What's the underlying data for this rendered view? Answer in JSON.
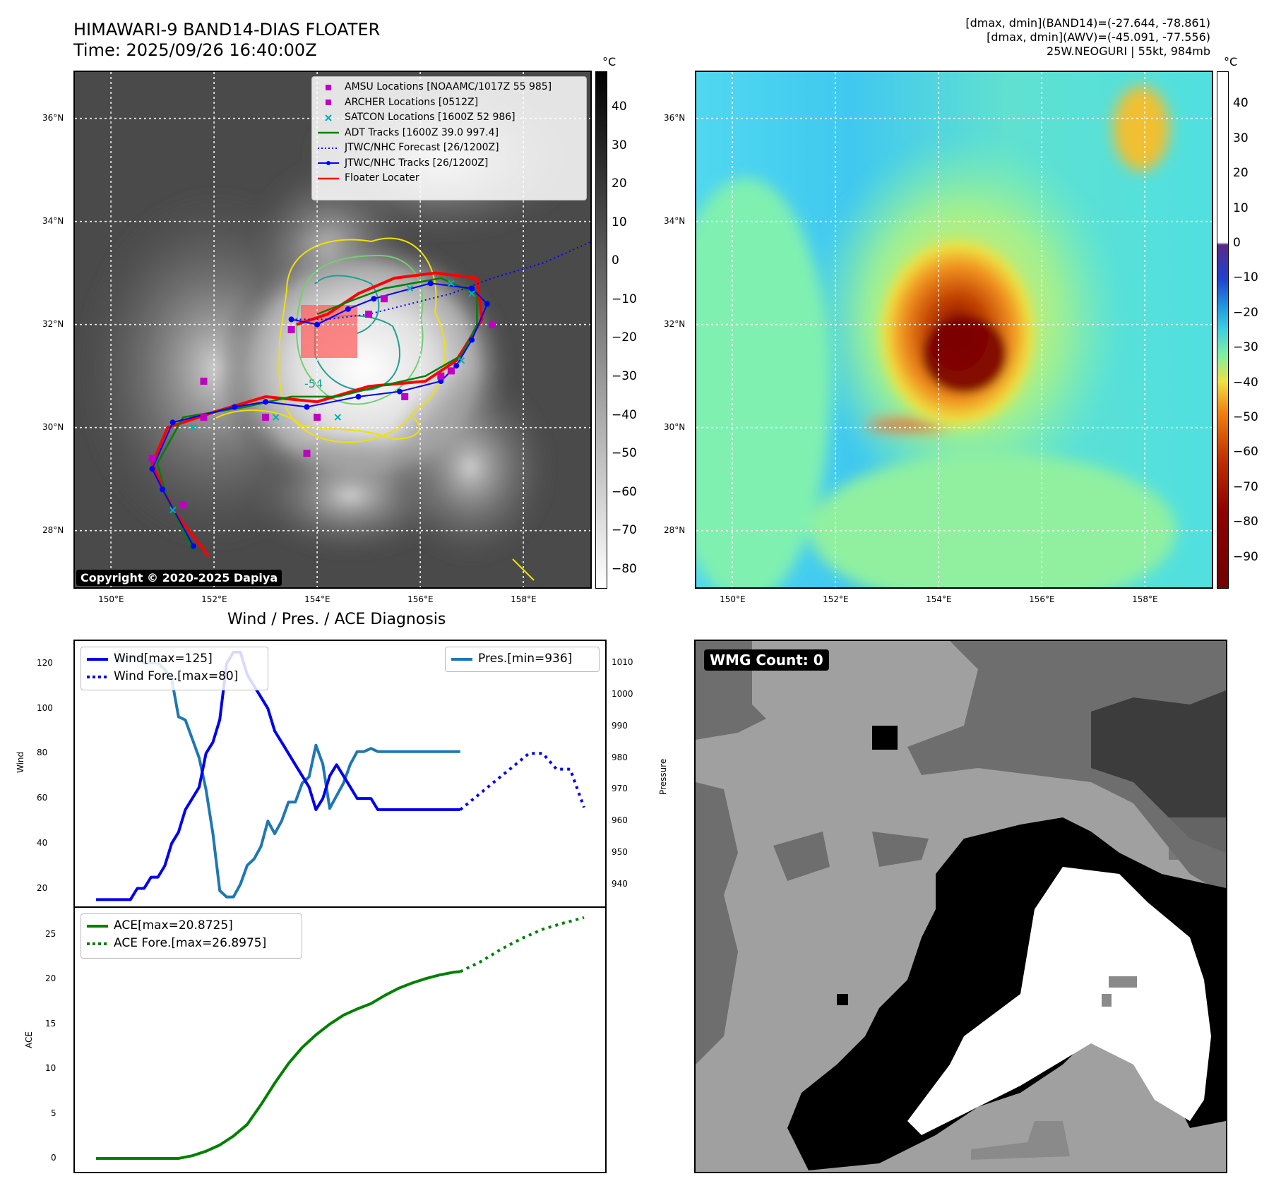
{
  "header": {
    "title_line1": "HIMAWARI-9 BAND14-DIAS FLOATER",
    "title_line2": "Time: 2025/09/26 16:40:00Z",
    "info_line1": "[dmax, dmin](BAND14)=(-27.644, -78.861)",
    "info_line2": "[dmax, dmin](AWV)=(-45.091, -77.556)",
    "info_line3": "25W.NEOGURI | 55kt, 984mb"
  },
  "map": {
    "lon_ticks": [
      "150°E",
      "152°E",
      "154°E",
      "156°E",
      "158°E"
    ],
    "lon_values": [
      150,
      152,
      154,
      156,
      158
    ],
    "lat_ticks": [
      "36°N",
      "34°N",
      "32°N",
      "30°N",
      "28°N"
    ],
    "lat_values": [
      36,
      34,
      32,
      30,
      28
    ],
    "lon_range": [
      149.3,
      159.3
    ],
    "lat_range": [
      26.9,
      36.9
    ],
    "contour_label": "-54",
    "copyright": "Copyright © 2020-2025 Dapiya"
  },
  "colorbar_ir": {
    "unit": "°C",
    "ticks": [
      "40",
      "30",
      "20",
      "10",
      "0",
      "−10",
      "−20",
      "−30",
      "−40",
      "−50",
      "−60",
      "−70",
      "−80"
    ],
    "tick_values": [
      40,
      30,
      20,
      10,
      0,
      -10,
      -20,
      -30,
      -40,
      -50,
      -60,
      -70,
      -80
    ],
    "range": [
      -85,
      49
    ]
  },
  "colorbar_wv": {
    "unit": "°C",
    "ticks": [
      "40",
      "30",
      "20",
      "10",
      "0",
      "−10",
      "−20",
      "−30",
      "−40",
      "−50",
      "−60",
      "−70",
      "−80",
      "−90"
    ],
    "tick_values": [
      40,
      30,
      20,
      10,
      0,
      -10,
      -20,
      -30,
      -40,
      -50,
      -60,
      -70,
      -80,
      -90
    ],
    "range": [
      -99,
      49
    ]
  },
  "map_legend": [
    {
      "label": "AMSU Locations [NOAAMC/1017Z 55 985]",
      "marker": "square",
      "color": "#c000c0"
    },
    {
      "label": "ARCHER Locations [0512Z]",
      "marker": "square",
      "color": "#c000c0"
    },
    {
      "label": "SATCON Locations [1600Z 52 986]",
      "marker": "x",
      "color": "#00b0b0"
    },
    {
      "label": "ADT Tracks [1600Z 39.0 997.4]",
      "marker": "line",
      "color": "#008000"
    },
    {
      "label": "JTWC/NHC Forecast [26/1200Z]",
      "marker": "dotted",
      "color": "#0000ff"
    },
    {
      "label": "JTWC/NHC Tracks [26/1200Z]",
      "marker": "line-dot",
      "color": "#0000ff"
    },
    {
      "label": "Floater Locater",
      "marker": "line",
      "color": "#ff0000"
    }
  ],
  "tracks": {
    "jtwc_track": [
      [
        151.6,
        27.7
      ],
      [
        151.0,
        28.8
      ],
      [
        150.8,
        29.2
      ],
      [
        151.2,
        30.1
      ],
      [
        152.4,
        30.4
      ],
      [
        153.0,
        30.5
      ],
      [
        153.8,
        30.4
      ],
      [
        154.8,
        30.6
      ],
      [
        155.6,
        30.7
      ],
      [
        156.4,
        30.9
      ],
      [
        156.7,
        31.2
      ],
      [
        157.0,
        31.7
      ],
      [
        157.3,
        32.4
      ],
      [
        157.0,
        32.7
      ],
      [
        156.2,
        32.8
      ],
      [
        155.1,
        32.5
      ],
      [
        154.6,
        32.3
      ],
      [
        154.0,
        32.0
      ],
      [
        153.5,
        32.1
      ]
    ],
    "jtwc_forecast": [
      [
        153.5,
        32.1
      ],
      [
        154.2,
        32.1
      ],
      [
        155.0,
        32.2
      ],
      [
        155.8,
        32.4
      ],
      [
        156.6,
        32.6
      ],
      [
        157.4,
        32.9
      ],
      [
        158.4,
        33.2
      ],
      [
        159.3,
        33.6
      ]
    ],
    "adt_track": [
      [
        151.6,
        27.6
      ],
      [
        151.1,
        28.6
      ],
      [
        150.9,
        29.3
      ],
      [
        151.4,
        30.2
      ],
      [
        152.6,
        30.4
      ],
      [
        153.5,
        30.6
      ],
      [
        154.4,
        30.6
      ],
      [
        155.2,
        30.8
      ],
      [
        156.1,
        31.0
      ],
      [
        156.8,
        31.4
      ],
      [
        157.1,
        32.0
      ],
      [
        157.1,
        32.6
      ],
      [
        156.4,
        32.9
      ],
      [
        155.3,
        32.7
      ],
      [
        154.5,
        32.4
      ],
      [
        154.0,
        32.2
      ]
    ],
    "floater": [
      [
        151.9,
        27.5
      ],
      [
        151.2,
        28.4
      ],
      [
        150.8,
        29.3
      ],
      [
        151.1,
        30.0
      ],
      [
        152.0,
        30.3
      ],
      [
        153.0,
        30.6
      ],
      [
        154.0,
        30.5
      ],
      [
        155.0,
        30.8
      ],
      [
        156.1,
        30.9
      ],
      [
        156.7,
        31.3
      ],
      [
        157.2,
        32.1
      ],
      [
        157.1,
        32.9
      ],
      [
        156.3,
        33.0
      ],
      [
        155.5,
        32.9
      ],
      [
        154.8,
        32.6
      ],
      [
        154.2,
        32.2
      ],
      [
        153.6,
        32.0
      ]
    ],
    "amsu_points": [
      [
        151.8,
        30.9
      ],
      [
        151.8,
        30.2
      ],
      [
        153.0,
        30.2
      ],
      [
        153.5,
        31.9
      ],
      [
        153.8,
        29.5
      ],
      [
        154.0,
        30.2
      ],
      [
        155.0,
        32.2
      ],
      [
        155.3,
        32.5
      ],
      [
        155.7,
        30.6
      ],
      [
        156.4,
        31.0
      ],
      [
        156.6,
        31.1
      ],
      [
        157.4,
        32.0
      ],
      [
        150.8,
        29.4
      ],
      [
        151.4,
        28.5
      ]
    ],
    "satcon_points": [
      [
        151.2,
        28.4
      ],
      [
        151.6,
        30.0
      ],
      [
        153.2,
        30.2
      ],
      [
        154.4,
        30.2
      ],
      [
        156.8,
        31.3
      ],
      [
        157.0,
        32.6
      ],
      [
        155.8,
        32.7
      ],
      [
        156.6,
        32.8
      ]
    ]
  },
  "wind_plot": {
    "title": "Wind / Pres. / ACE Diagnosis",
    "left_label": "Wind",
    "right_label": "Pressure",
    "left_ticks": [
      20,
      40,
      60,
      80,
      100,
      120
    ],
    "left_range": [
      12,
      130
    ],
    "right_ticks": [
      940,
      950,
      960,
      970,
      980,
      990,
      1000,
      1010
    ],
    "right_range": [
      933,
      1017
    ],
    "x_range": [
      0,
      71
    ],
    "legend_wind": "Wind[max=125]",
    "legend_wind_fore": "Wind Fore.[max=80]",
    "legend_pres": "Pres.[min=936]",
    "wind_color": "#0000ee",
    "pres_color": "#1f77b4"
  },
  "ace_plot": {
    "left_label": "ACE",
    "left_ticks": [
      0,
      5,
      10,
      15,
      20,
      25
    ],
    "left_range": [
      -1.5,
      28
    ],
    "legend_ace": "ACE[max=20.8725]",
    "legend_ace_fore": "ACE Fore.[max=26.8975]",
    "ace_color": "#008000"
  },
  "chart_data": [
    {
      "type": "line",
      "title": "Wind / Pres. / ACE Diagnosis",
      "ylabel": "Wind",
      "ylim": [
        12,
        130
      ],
      "series": [
        {
          "name": "Wind[max=125]",
          "x": [
            0,
            1,
            2,
            3,
            4,
            5,
            6,
            7,
            8,
            9,
            10,
            11,
            12,
            13,
            14,
            15,
            16,
            17,
            18,
            19,
            20,
            21,
            22,
            23,
            24,
            25,
            26,
            27,
            28,
            29,
            30,
            31,
            32,
            33,
            34,
            35,
            36,
            37,
            38,
            39,
            40,
            41,
            42,
            43,
            44,
            45,
            46,
            47,
            48,
            49,
            50,
            51,
            52,
            53
          ],
          "values": [
            15,
            15,
            15,
            15,
            15,
            15,
            20,
            20,
            25,
            25,
            30,
            40,
            45,
            55,
            60,
            65,
            80,
            85,
            95,
            120,
            125,
            125,
            115,
            110,
            105,
            100,
            90,
            85,
            80,
            75,
            70,
            65,
            55,
            60,
            70,
            75,
            70,
            65,
            60,
            60,
            60,
            55,
            55,
            55,
            55,
            55,
            55,
            55,
            55,
            55,
            55,
            55,
            55,
            55
          ]
        },
        {
          "name": "Wind Fore.[max=80]",
          "x": [
            53,
            55,
            57,
            59,
            61,
            63,
            65,
            67,
            69,
            71
          ],
          "values": [
            55,
            60,
            65,
            70,
            75,
            80,
            80,
            73,
            73,
            56
          ]
        }
      ]
    },
    {
      "type": "line",
      "ylabel": "Pressure",
      "ylim": [
        933,
        1017
      ],
      "series": [
        {
          "name": "Pres.[min=936]",
          "x": [
            3,
            4,
            5,
            6,
            7,
            8,
            9,
            10,
            11,
            12,
            13,
            14,
            15,
            16,
            17,
            18,
            19,
            20,
            21,
            22,
            23,
            24,
            25,
            26,
            27,
            28,
            29,
            30,
            31,
            32,
            33,
            34,
            35,
            36,
            37,
            38,
            39,
            40,
            41,
            42,
            43,
            44,
            45,
            46,
            47,
            48,
            49,
            50,
            51,
            52,
            53
          ],
          "values": [
            1010,
            1012,
            1012,
            1012,
            1010,
            1010,
            1010,
            1008,
            1005,
            993,
            992,
            986,
            980,
            970,
            956,
            938,
            936,
            936,
            940,
            946,
            948,
            952,
            960,
            956,
            960,
            966,
            966,
            972,
            974,
            984,
            978,
            964,
            968,
            972,
            978,
            982,
            982,
            983,
            982,
            982,
            982,
            982,
            982,
            982,
            982,
            982,
            982,
            982,
            982,
            982,
            982
          ]
        }
      ]
    },
    {
      "type": "line",
      "ylabel": "ACE",
      "ylim": [
        -1.5,
        28
      ],
      "series": [
        {
          "name": "ACE[max=20.8725]",
          "x": [
            0,
            12,
            14,
            16,
            18,
            20,
            22,
            24,
            26,
            28,
            30,
            32,
            34,
            36,
            38,
            40,
            42,
            44,
            46,
            48,
            50,
            52,
            53
          ],
          "values": [
            0,
            0,
            0.3,
            0.8,
            1.5,
            2.5,
            3.8,
            6,
            8.4,
            10.6,
            12.4,
            13.8,
            15,
            16,
            16.7,
            17.3,
            18.2,
            19,
            19.6,
            20.1,
            20.5,
            20.8,
            20.87
          ]
        },
        {
          "name": "ACE Fore.[max=26.8975]",
          "x": [
            53,
            56,
            59,
            62,
            65,
            68,
            71
          ],
          "values": [
            20.87,
            22,
            23.4,
            24.6,
            25.6,
            26.3,
            26.9
          ]
        }
      ]
    }
  ]
}
